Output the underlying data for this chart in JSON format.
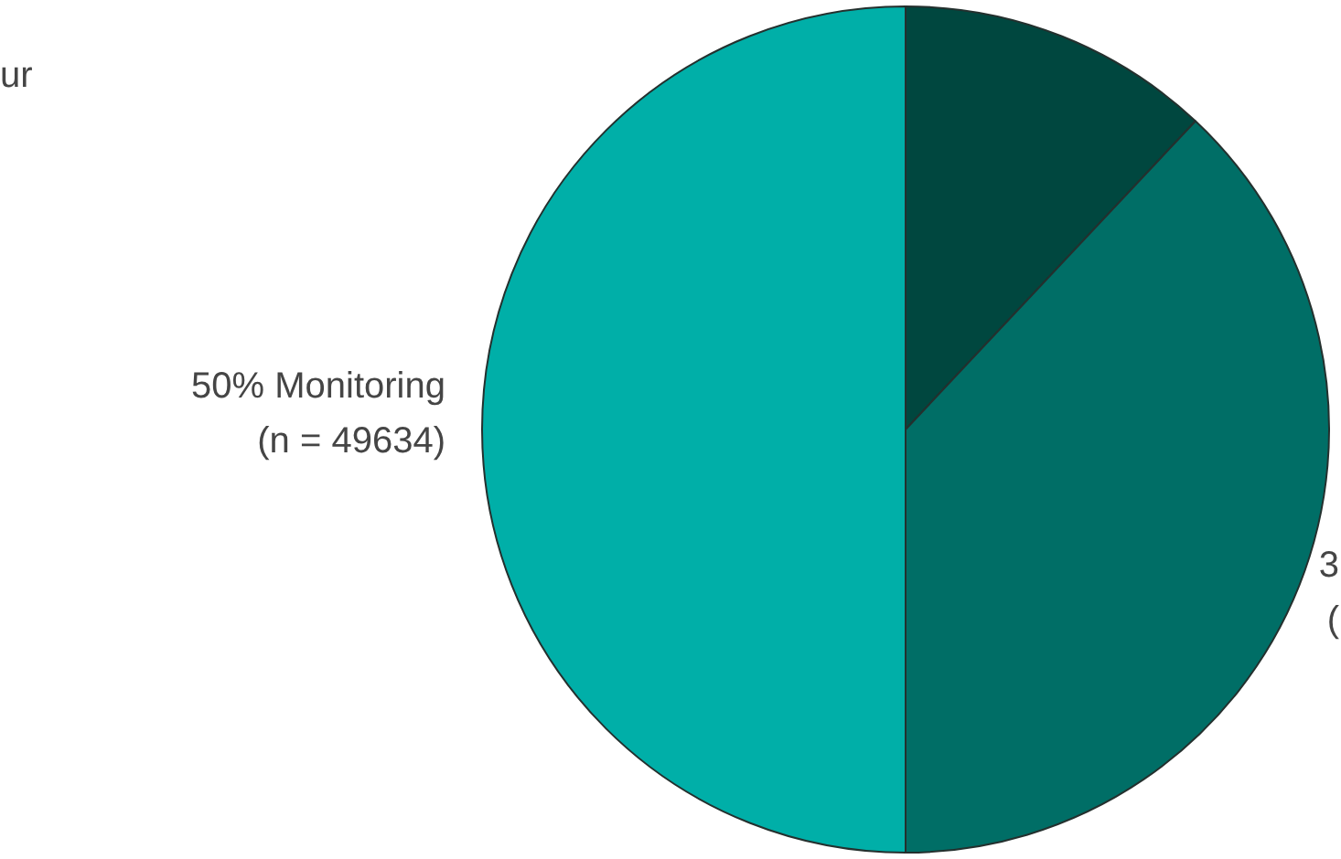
{
  "chart_data": {
    "type": "pie",
    "annotations": [
      "ur",
      "3\n("
    ],
    "categories": [
      null,
      null,
      null
    ],
    "values": [
      12,
      38,
      50
    ],
    "colors": [
      "#00473f",
      "#006e66",
      "#00afa8"
    ],
    "value_labels": [
      null,
      null,
      "50% Monitoring\n(n = 49634)"
    ]
  }
}
